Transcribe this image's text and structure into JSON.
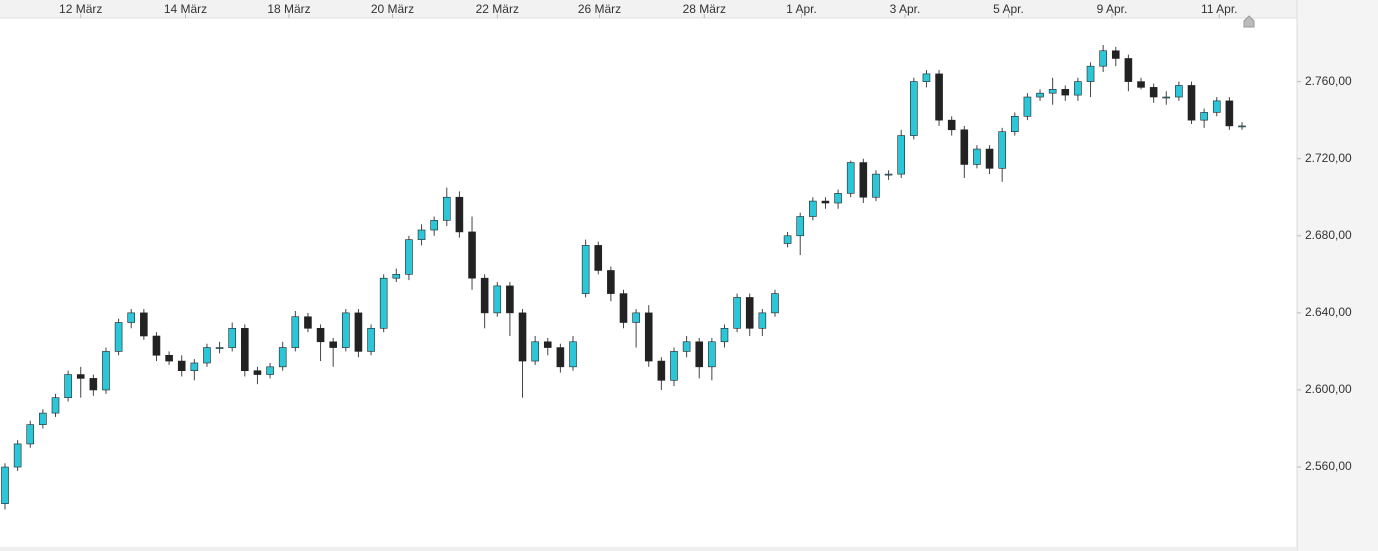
{
  "chart_data": {
    "type": "candlestick",
    "open": [
      2541,
      2560,
      2572,
      2582,
      2588,
      2596,
      2608,
      2606,
      2600,
      2620,
      2635,
      2640,
      2628,
      2618,
      2615,
      2610,
      2614,
      2622,
      2622,
      2632,
      2610,
      2608,
      2612,
      2622,
      2638,
      2632,
      2625,
      2622,
      2640,
      2620,
      2632,
      2658,
      2660,
      2678,
      2683,
      2688,
      2700,
      2682,
      2658,
      2640,
      2654,
      2640,
      2615,
      2625,
      2622,
      2612,
      2650,
      2675,
      2662,
      2650,
      2635,
      2640,
      2615,
      2605,
      2620,
      2625,
      2612,
      2625,
      2632,
      2648,
      2632,
      2640,
      2676,
      2680,
      2690,
      2698,
      2697,
      2702,
      2718,
      2700,
      2712,
      2712,
      2732,
      2760,
      2764,
      2740,
      2735,
      2717,
      2725,
      2715,
      2734,
      2742,
      2752,
      2754,
      2756,
      2753,
      2760,
      2768,
      2776,
      2772,
      2760,
      2757,
      2752,
      2752,
      2758,
      2740,
      2744,
      2750,
      2737
    ],
    "high": [
      2562,
      2574,
      2584,
      2590,
      2598,
      2610,
      2612,
      2608,
      2622,
      2637,
      2642,
      2642,
      2630,
      2620,
      2618,
      2616,
      2624,
      2625,
      2635,
      2634,
      2612,
      2614,
      2625,
      2641,
      2640,
      2634,
      2627,
      2642,
      2642,
      2634,
      2660,
      2663,
      2680,
      2686,
      2690,
      2705,
      2703,
      2690,
      2660,
      2656,
      2656,
      2642,
      2628,
      2627,
      2624,
      2628,
      2678,
      2677,
      2664,
      2652,
      2642,
      2644,
      2617,
      2622,
      2628,
      2627,
      2627,
      2634,
      2650,
      2650,
      2642,
      2652,
      2682,
      2692,
      2700,
      2700,
      2704,
      2719,
      2720,
      2714,
      2714,
      2735,
      2762,
      2766,
      2766,
      2742,
      2737,
      2727,
      2727,
      2736,
      2744,
      2754,
      2756,
      2762,
      2758,
      2762,
      2770,
      2779,
      2778,
      2774,
      2762,
      2759,
      2755,
      2760,
      2760,
      2746,
      2752,
      2752,
      2739
    ],
    "low": [
      2538,
      2558,
      2570,
      2580,
      2586,
      2594,
      2596,
      2597,
      2598,
      2618,
      2632,
      2626,
      2615,
      2613,
      2607,
      2605,
      2612,
      2619,
      2620,
      2607,
      2603,
      2606,
      2610,
      2620,
      2630,
      2615,
      2612,
      2620,
      2617,
      2618,
      2630,
      2656,
      2657,
      2675,
      2680,
      2685,
      2679,
      2652,
      2632,
      2638,
      2628,
      2596,
      2613,
      2618,
      2609,
      2610,
      2648,
      2660,
      2646,
      2632,
      2622,
      2612,
      2600,
      2602,
      2617,
      2606,
      2605,
      2622,
      2630,
      2628,
      2628,
      2638,
      2674,
      2670,
      2688,
      2694,
      2694,
      2700,
      2697,
      2698,
      2709,
      2710,
      2730,
      2757,
      2737,
      2732,
      2710,
      2715,
      2712,
      2708,
      2732,
      2740,
      2750,
      2748,
      2750,
      2750,
      2752,
      2765,
      2768,
      2755,
      2756,
      2749,
      2748,
      2750,
      2738,
      2736,
      2742,
      2735,
      2735
    ],
    "close": [
      2560,
      2572,
      2582,
      2588,
      2596,
      2608,
      2606,
      2600,
      2620,
      2635,
      2640,
      2628,
      2618,
      2615,
      2610,
      2614,
      2622,
      2622,
      2632,
      2610,
      2608,
      2612,
      2622,
      2638,
      2632,
      2625,
      2622,
      2640,
      2620,
      2632,
      2658,
      2660,
      2678,
      2683,
      2688,
      2700,
      2682,
      2658,
      2640,
      2654,
      2640,
      2615,
      2625,
      2622,
      2612,
      2625,
      2675,
      2662,
      2650,
      2635,
      2640,
      2615,
      2605,
      2620,
      2625,
      2612,
      2625,
      2632,
      2648,
      2632,
      2640,
      2650,
      2680,
      2690,
      2698,
      2697,
      2702,
      2718,
      2700,
      2712,
      2712,
      2732,
      2760,
      2764,
      2740,
      2735,
      2717,
      2725,
      2715,
      2734,
      2742,
      2752,
      2754,
      2756,
      2753,
      2760,
      2768,
      2776,
      2772,
      2760,
      2757,
      2752,
      2752,
      2758,
      2740,
      2744,
      2750,
      2737,
      2737
    ],
    "up_color": "#2cc6d9",
    "down_color": "#222222",
    "xlim": [
      0,
      98
    ],
    "xticks": [
      {
        "value": 6,
        "label": "12 März"
      },
      {
        "value": 14.3,
        "label": "14 März"
      },
      {
        "value": 22.5,
        "label": "18 März"
      },
      {
        "value": 30.7,
        "label": "20 März"
      },
      {
        "value": 39,
        "label": "22 März"
      },
      {
        "value": 47.1,
        "label": "26 März"
      },
      {
        "value": 55.4,
        "label": "28 März"
      },
      {
        "value": 63.1,
        "label": "1 Apr."
      },
      {
        "value": 71.3,
        "label": "3 Apr."
      },
      {
        "value": 79.5,
        "label": "5 Apr."
      },
      {
        "value": 87.7,
        "label": "9 Apr."
      },
      {
        "value": 96.2,
        "label": "11 Apr."
      }
    ],
    "ylim": [
      2518,
      2793
    ],
    "yticks": [
      {
        "value": 2560,
        "label": "2.560,00"
      },
      {
        "value": 2600,
        "label": "2.600,00"
      },
      {
        "value": 2640,
        "label": "2.640,00"
      },
      {
        "value": 2680,
        "label": "2.680,00"
      },
      {
        "value": 2720,
        "label": "2.720,00"
      },
      {
        "value": 2760,
        "label": "2.760,00"
      }
    ]
  }
}
